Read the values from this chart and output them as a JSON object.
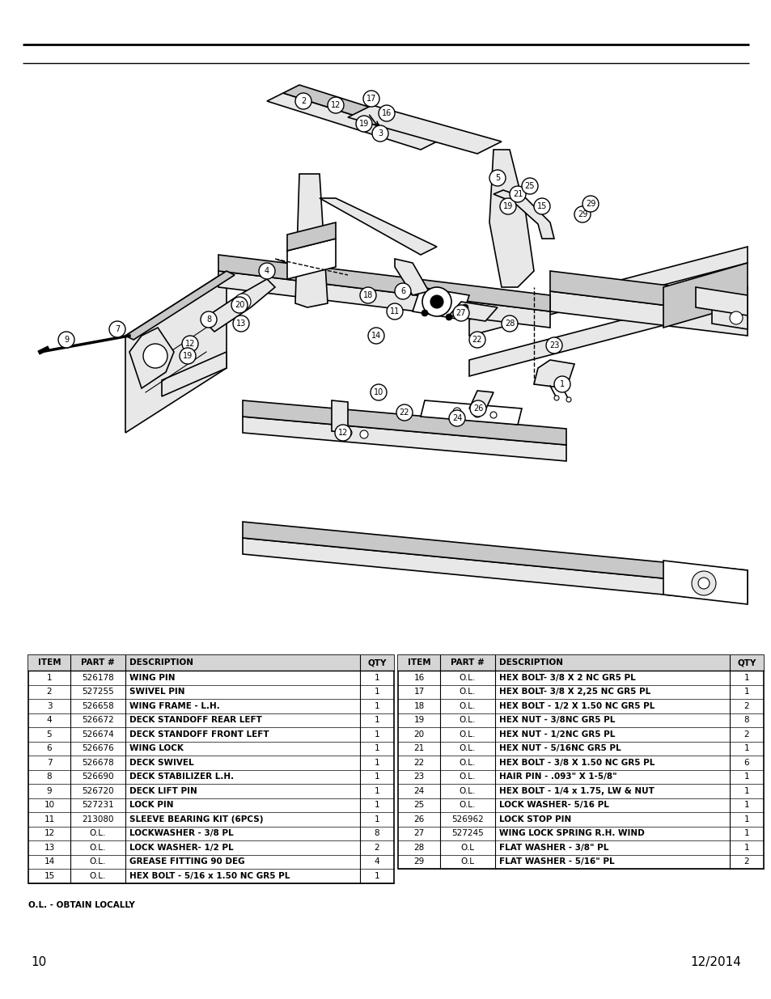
{
  "page_number": "10",
  "date": "12/2014",
  "background_color": "#ffffff",
  "table_left": {
    "headers": [
      "ITEM",
      "PART #",
      "DESCRIPTION",
      "QTY"
    ],
    "rows": [
      [
        "1",
        "526178",
        "WING PIN",
        "1"
      ],
      [
        "2",
        "527255",
        "SWIVEL PIN",
        "1"
      ],
      [
        "3",
        "526658",
        "WING FRAME - L.H.",
        "1"
      ],
      [
        "4",
        "526672",
        "DECK STANDOFF REAR LEFT",
        "1"
      ],
      [
        "5",
        "526674",
        "DECK STANDOFF FRONT LEFT",
        "1"
      ],
      [
        "6",
        "526676",
        "WING LOCK",
        "1"
      ],
      [
        "7",
        "526678",
        "DECK SWIVEL",
        "1"
      ],
      [
        "8",
        "526690",
        "DECK STABILIZER L.H.",
        "1"
      ],
      [
        "9",
        "526720",
        "DECK LIFT PIN",
        "1"
      ],
      [
        "10",
        "527231",
        "LOCK PIN",
        "1"
      ],
      [
        "11",
        "213080",
        "SLEEVE BEARING KIT (6PCS)",
        "1"
      ],
      [
        "12",
        "O.L.",
        "LOCKWASHER - 3/8 PL",
        "8"
      ],
      [
        "13",
        "O.L.",
        "LOCK WASHER- 1/2 PL",
        "2"
      ],
      [
        "14",
        "O.L.",
        "GREASE FITTING 90 DEG",
        "4"
      ],
      [
        "15",
        "O.L.",
        "HEX BOLT - 5/16 x 1.50 NC GR5 PL",
        "1"
      ]
    ]
  },
  "table_right": {
    "headers": [
      "ITEM",
      "PART #",
      "DESCRIPTION",
      "QTY"
    ],
    "rows": [
      [
        "16",
        "O.L.",
        "HEX BOLT- 3/8 X 2 NC GR5 PL",
        "1"
      ],
      [
        "17",
        "O.L.",
        "HEX BOLT- 3/8 X 2,25 NC GR5 PL",
        "1"
      ],
      [
        "18",
        "O.L.",
        "HEX BOLT - 1/2 X 1.50 NC GR5 PL",
        "2"
      ],
      [
        "19",
        "O.L.",
        "HEX NUT - 3/8NC GR5 PL",
        "8"
      ],
      [
        "20",
        "O.L.",
        "HEX NUT - 1/2NC GR5 PL",
        "2"
      ],
      [
        "21",
        "O.L.",
        "HEX NUT - 5/16NC GR5 PL",
        "1"
      ],
      [
        "22",
        "O.L.",
        "HEX BOLT - 3/8 X 1.50 NC GR5 PL",
        "6"
      ],
      [
        "23",
        "O.L.",
        "HAIR PIN - .093\" X 1-5/8\"",
        "1"
      ],
      [
        "24",
        "O.L.",
        "HEX BOLT - 1/4 x 1.75, LW & NUT",
        "1"
      ],
      [
        "25",
        "O.L.",
        "LOCK WASHER- 5/16 PL",
        "1"
      ],
      [
        "26",
        "526962",
        "LOCK STOP PIN",
        "1"
      ],
      [
        "27",
        "527245",
        "WING LOCK SPRING R.H. WIND",
        "1"
      ],
      [
        "28",
        "O.L",
        "FLAT WASHER - 3/8\" PL",
        "1"
      ],
      [
        "29",
        "O.L",
        "FLAT WASHER - 5/16\" PL",
        "2"
      ]
    ]
  },
  "footnote": "O.L. - OBTAIN LOCALLY"
}
